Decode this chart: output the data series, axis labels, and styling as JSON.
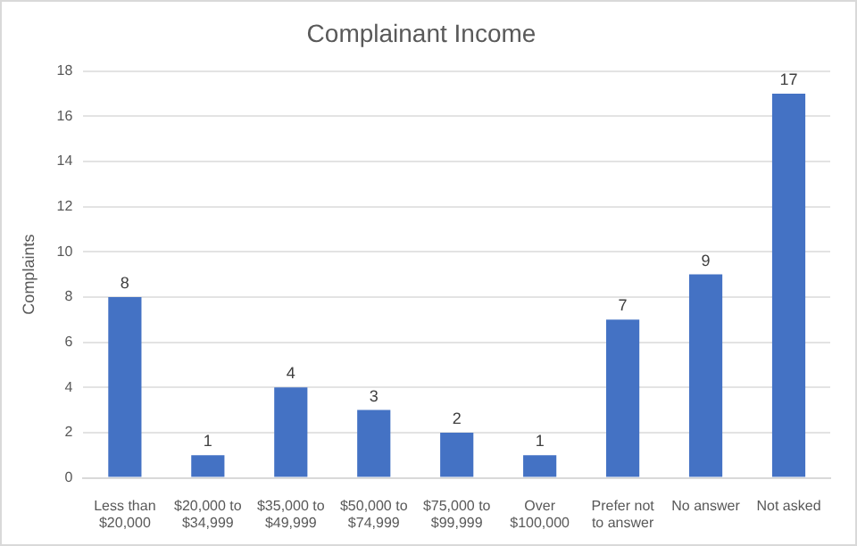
{
  "chart_data": {
    "type": "bar",
    "title": "Complainant Income",
    "ylabel": "Complaints",
    "categories": [
      "Less than $20,000",
      "$20,000 to $34,999",
      "$35,000 to $49,999",
      "$50,000 to $74,999",
      "$75,000 to $99,999",
      "Over $100,000",
      "Prefer not to answer",
      "No answer",
      "Not asked"
    ],
    "values": [
      8,
      1,
      4,
      3,
      2,
      1,
      7,
      9,
      17
    ],
    "color": "#4472c4",
    "ylim": [
      0,
      18
    ],
    "yticks": [
      0,
      2,
      4,
      6,
      8,
      10,
      12,
      14,
      16,
      18
    ],
    "grid": "y",
    "data_labels": true,
    "legend": false
  }
}
